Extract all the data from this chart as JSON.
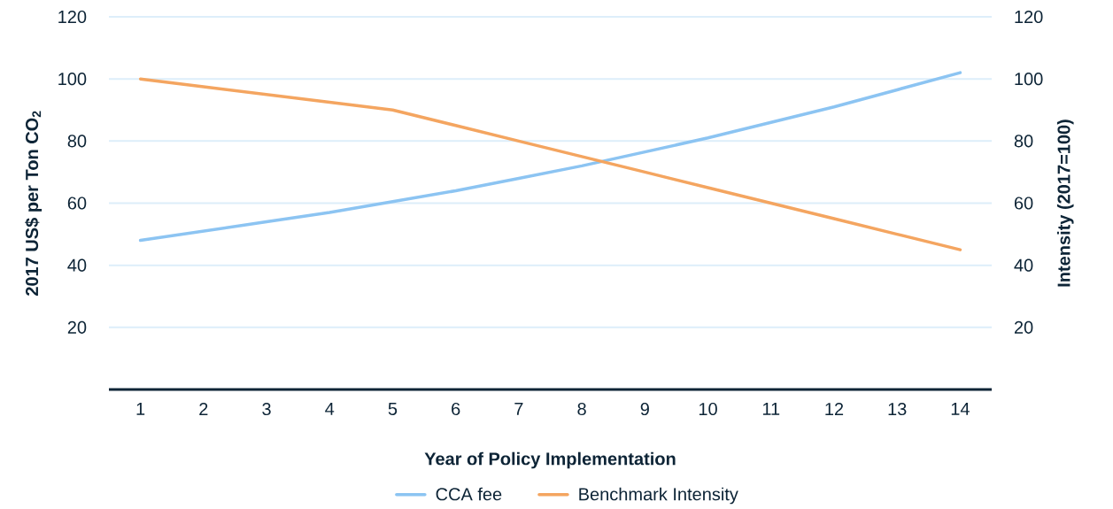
{
  "chart_data": {
    "type": "line",
    "xlabel": "Year of Policy Implementation",
    "ylabel": "2017 US$ per Ton CO$_{2}$",
    "y2label": "Intensity (2017=100)",
    "x": [
      1,
      2,
      3,
      4,
      5,
      6,
      7,
      8,
      9,
      10,
      11,
      12,
      13,
      14
    ],
    "xlim": [
      0.5,
      14.5
    ],
    "xticks": [
      1,
      2,
      3,
      4,
      5,
      6,
      7,
      8,
      9,
      10,
      11,
      12,
      13,
      14
    ],
    "ylim": [
      0,
      120
    ],
    "yticks": [
      20,
      40,
      60,
      80,
      100,
      120
    ],
    "y2lim": [
      0,
      120
    ],
    "y2ticks": [
      20,
      40,
      60,
      80,
      100,
      120
    ],
    "series": [
      {
        "name": "CCA fee",
        "color": "#8cc4f2",
        "values": [
          48,
          51,
          54,
          57,
          60.5,
          64,
          68,
          72,
          76.5,
          81,
          86,
          91,
          96.5,
          102
        ]
      },
      {
        "name": "Benchmark Intensity",
        "color": "#f4a560",
        "axis": "y2",
        "values": [
          100,
          97.5,
          95,
          92.5,
          90,
          85,
          80,
          75,
          70,
          65,
          60,
          55,
          50,
          45
        ]
      }
    ],
    "grid": "y",
    "legend": "bottom",
    "line_style": "solid",
    "marker": "none"
  }
}
